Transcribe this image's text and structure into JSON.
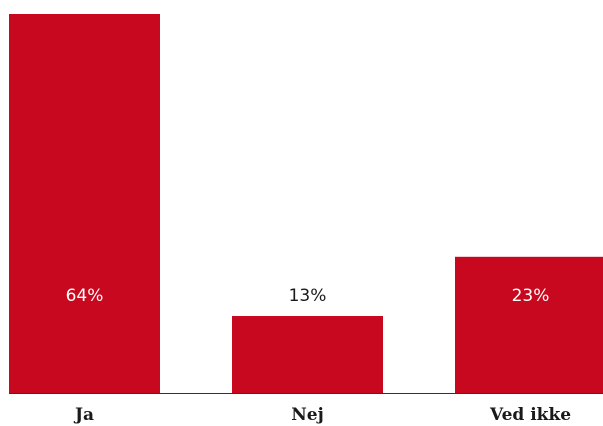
{
  "chart_data": {
    "type": "bar",
    "categories": [
      "Ja",
      "Nej",
      "Ved ikke"
    ],
    "values": [
      64,
      13,
      23
    ],
    "value_labels": [
      "64%",
      "13%",
      "23%"
    ],
    "color": "#c8081f"
  }
}
